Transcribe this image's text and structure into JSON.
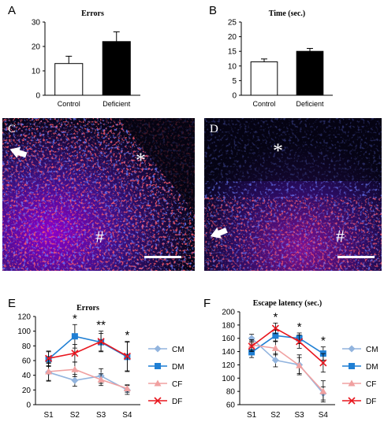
{
  "panels": {
    "A": "A",
    "B": "B",
    "C": "C",
    "D": "D",
    "E": "E",
    "F": "F"
  },
  "micrograph_c": {
    "asterisk": "*",
    "hash": "#"
  },
  "micrograph_d": {
    "asterisk": "*",
    "hash": "#"
  },
  "colors": {
    "control_bar": "#ffffff",
    "deficient_bar": "#000000",
    "CM": "#92b4de",
    "DM": "#1f7fd4",
    "CF": "#f0a0a0",
    "DF": "#e8161e"
  },
  "chart_data": [
    {
      "type": "bar",
      "title": "Errors",
      "categories": [
        "Control",
        "Deficient"
      ],
      "values": [
        13,
        22
      ],
      "errors": [
        3,
        4
      ],
      "ylim": [
        0,
        30
      ],
      "yticks": [
        0,
        10,
        20,
        30
      ]
    },
    {
      "type": "bar",
      "title": "Time (sec.)",
      "categories": [
        "Control",
        "Deficient"
      ],
      "values": [
        11.4,
        15
      ],
      "errors": [
        1,
        1
      ],
      "ylim": [
        0,
        25
      ],
      "yticks": [
        0,
        5,
        10,
        15,
        20,
        25
      ]
    },
    {
      "type": "line",
      "title": "Errors",
      "categories": [
        "S1",
        "S2",
        "S3",
        "S4"
      ],
      "ylim": [
        0,
        120
      ],
      "yticks": [
        0,
        20,
        40,
        60,
        80,
        100,
        120
      ],
      "series": [
        {
          "name": "CM",
          "values": [
            44,
            33,
            39,
            20
          ],
          "errors": [
            12,
            8,
            10,
            6
          ]
        },
        {
          "name": "DM",
          "values": [
            62,
            93,
            85,
            65
          ],
          "errors": [
            10,
            16,
            12,
            20
          ]
        },
        {
          "name": "CF",
          "values": [
            45,
            48,
            34,
            22
          ],
          "errors": [
            12,
            10,
            8,
            5
          ]
        },
        {
          "name": "DF",
          "values": [
            63,
            70,
            86,
            66
          ],
          "errors": [
            10,
            12,
            14,
            20
          ]
        }
      ],
      "annotations": [
        "",
        "*",
        "**",
        "*"
      ]
    },
    {
      "type": "line",
      "title": "Escape latency (sec.)",
      "categories": [
        "S1",
        "S2",
        "S3",
        "S4"
      ],
      "ylim": [
        60,
        200
      ],
      "yticks": [
        60,
        80,
        100,
        120,
        140,
        160,
        180,
        200
      ],
      "series": [
        {
          "name": "CM",
          "values": [
            160,
            127,
            120,
            77
          ],
          "errors": [
            6,
            10,
            15,
            10
          ]
        },
        {
          "name": "DM",
          "values": [
            139,
            164,
            160,
            137
          ],
          "errors": [
            8,
            8,
            8,
            10
          ]
        },
        {
          "name": "CF",
          "values": [
            150,
            145,
            119,
            80
          ],
          "errors": [
            8,
            10,
            12,
            16
          ]
        },
        {
          "name": "DF",
          "values": [
            148,
            175,
            155,
            123
          ],
          "errors": [
            8,
            8,
            10,
            14
          ]
        }
      ],
      "annotations": [
        "",
        "*",
        "*",
        "*"
      ]
    }
  ]
}
